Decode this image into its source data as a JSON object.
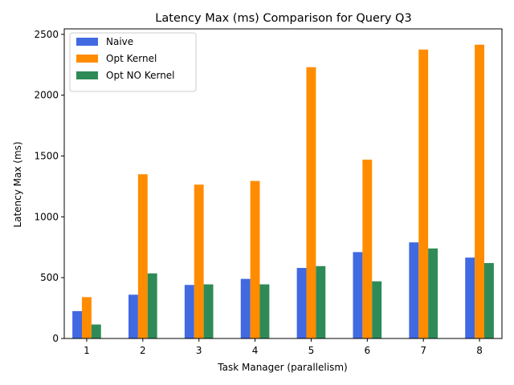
{
  "chart_data": {
    "type": "bar",
    "title": "Latency Max (ms) Comparison for Query Q3",
    "xlabel": "Task Manager (parallelism)",
    "ylabel": "Latency Max (ms)",
    "categories": [
      "1",
      "2",
      "3",
      "4",
      "5",
      "6",
      "7",
      "8"
    ],
    "ylim": [
      0,
      2500
    ],
    "yticks": [
      0,
      500,
      1000,
      1500,
      2000,
      2500
    ],
    "legend_position": "top-left",
    "grid": false,
    "series": [
      {
        "name": "Naive",
        "color": "#4169e1",
        "values": [
          225,
          360,
          440,
          490,
          580,
          710,
          790,
          665
        ]
      },
      {
        "name": "Opt Kernel",
        "color": "#ff8c00",
        "values": [
          340,
          1350,
          1265,
          1295,
          2230,
          1470,
          2375,
          2415
        ]
      },
      {
        "name": "Opt NO Kernel",
        "color": "#2e8b57",
        "values": [
          115,
          535,
          445,
          445,
          595,
          470,
          740,
          620
        ]
      }
    ]
  }
}
